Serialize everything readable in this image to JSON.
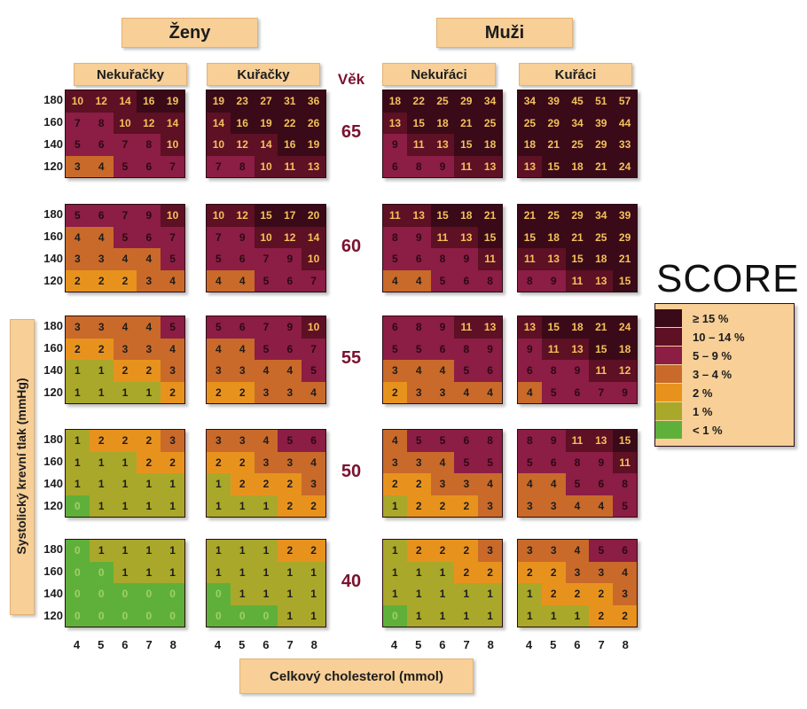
{
  "header": {
    "women": "Ženy",
    "men": "Muži"
  },
  "subheaders": [
    "Nekuřačky",
    "Kuřačky",
    "Nekuřáci",
    "Kuřáci"
  ],
  "age_header": "Věk",
  "ages": [
    "65",
    "60",
    "55",
    "50",
    "40"
  ],
  "y_ticks": [
    "180",
    "160",
    "140",
    "120"
  ],
  "x_ticks": [
    "4",
    "5",
    "6",
    "7",
    "8"
  ],
  "y_axis_label": "Systolický krevní tlak (mmHg)",
  "x_axis_label": "Celkový cholesterol (mmol)",
  "score": {
    "title": "SCORE",
    "legend": [
      {
        "label": "≥ 15 %",
        "color": "#3a0a18"
      },
      {
        "label": "10 – 14 %",
        "color": "#5e1024"
      },
      {
        "label": "5 – 9 %",
        "color": "#8c1d45"
      },
      {
        "label": "3 – 4 %",
        "color": "#c96a2a"
      },
      {
        "label": "2 %",
        "color": "#e8921e"
      },
      {
        "label": "1 %",
        "color": "#a9a82a"
      },
      {
        "label": "< 1 %",
        "color": "#5fb03a"
      }
    ]
  },
  "chart_data": {
    "type": "heatmap",
    "title": "SCORE",
    "xlabel": "Celkový cholesterol (mmol)",
    "ylabel": "Systolický krevní tlak (mmHg)",
    "x": [
      4,
      5,
      6,
      7,
      8
    ],
    "y": [
      180,
      160,
      140,
      120
    ],
    "groups": [
      "Ženy / Nekuřačky",
      "Ženy / Kuřačky",
      "Muži / Nekuřáci",
      "Muži / Kuřáci"
    ],
    "ages": [
      65,
      60,
      55,
      50,
      40
    ],
    "panels": [
      [
        [
          [
            10,
            12,
            14,
            16,
            19
          ],
          [
            7,
            8,
            10,
            12,
            14
          ],
          [
            5,
            6,
            7,
            8,
            10
          ],
          [
            3,
            4,
            5,
            6,
            7
          ]
        ],
        [
          [
            19,
            23,
            27,
            31,
            36
          ],
          [
            14,
            16,
            19,
            22,
            26
          ],
          [
            10,
            12,
            14,
            16,
            19
          ],
          [
            7,
            8,
            10,
            11,
            13
          ]
        ],
        [
          [
            18,
            22,
            25,
            29,
            34
          ],
          [
            13,
            15,
            18,
            21,
            25
          ],
          [
            9,
            11,
            13,
            15,
            18
          ],
          [
            6,
            8,
            9,
            11,
            13
          ]
        ],
        [
          [
            34,
            39,
            45,
            51,
            57
          ],
          [
            25,
            29,
            34,
            39,
            44
          ],
          [
            18,
            21,
            25,
            29,
            33
          ],
          [
            13,
            15,
            18,
            21,
            24
          ]
        ]
      ],
      [
        [
          [
            5,
            6,
            7,
            9,
            10
          ],
          [
            4,
            4,
            5,
            6,
            7
          ],
          [
            3,
            3,
            4,
            4,
            5
          ],
          [
            2,
            2,
            2,
            3,
            4
          ]
        ],
        [
          [
            10,
            12,
            15,
            17,
            20
          ],
          [
            7,
            9,
            10,
            12,
            14
          ],
          [
            5,
            6,
            7,
            9,
            10
          ],
          [
            4,
            4,
            5,
            6,
            7
          ]
        ],
        [
          [
            11,
            13,
            15,
            18,
            21
          ],
          [
            8,
            9,
            11,
            13,
            15
          ],
          [
            5,
            6,
            8,
            9,
            11
          ],
          [
            4,
            4,
            5,
            6,
            8
          ]
        ],
        [
          [
            21,
            25,
            29,
            34,
            39
          ],
          [
            15,
            18,
            21,
            25,
            29
          ],
          [
            11,
            13,
            15,
            18,
            21
          ],
          [
            8,
            9,
            11,
            13,
            15
          ]
        ]
      ],
      [
        [
          [
            3,
            3,
            4,
            4,
            5
          ],
          [
            2,
            2,
            3,
            3,
            4
          ],
          [
            1,
            1,
            2,
            2,
            3
          ],
          [
            1,
            1,
            1,
            1,
            2
          ]
        ],
        [
          [
            5,
            6,
            7,
            9,
            10
          ],
          [
            4,
            4,
            5,
            6,
            7
          ],
          [
            3,
            3,
            4,
            4,
            5
          ],
          [
            2,
            2,
            3,
            3,
            4
          ]
        ],
        [
          [
            6,
            8,
            9,
            11,
            13
          ],
          [
            5,
            5,
            6,
            8,
            9
          ],
          [
            3,
            4,
            4,
            5,
            6
          ],
          [
            2,
            3,
            3,
            4,
            4
          ]
        ],
        [
          [
            13,
            15,
            18,
            21,
            24
          ],
          [
            9,
            11,
            13,
            15,
            18
          ],
          [
            6,
            8,
            9,
            11,
            12
          ],
          [
            4,
            5,
            6,
            7,
            9
          ]
        ]
      ],
      [
        [
          [
            1,
            2,
            2,
            2,
            3
          ],
          [
            1,
            1,
            1,
            2,
            2
          ],
          [
            1,
            1,
            1,
            1,
            1
          ],
          [
            0,
            1,
            1,
            1,
            1
          ]
        ],
        [
          [
            3,
            3,
            4,
            5,
            6
          ],
          [
            2,
            2,
            3,
            3,
            4
          ],
          [
            1,
            2,
            2,
            2,
            3
          ],
          [
            1,
            1,
            1,
            2,
            2
          ]
        ],
        [
          [
            4,
            5,
            5,
            6,
            8
          ],
          [
            3,
            3,
            4,
            5,
            5
          ],
          [
            2,
            2,
            3,
            3,
            4
          ],
          [
            1,
            2,
            2,
            2,
            3
          ]
        ],
        [
          [
            8,
            9,
            11,
            13,
            15
          ],
          [
            5,
            6,
            8,
            9,
            11
          ],
          [
            4,
            4,
            5,
            6,
            8
          ],
          [
            3,
            3,
            4,
            4,
            5
          ]
        ]
      ],
      [
        [
          [
            0,
            1,
            1,
            1,
            1
          ],
          [
            0,
            0,
            1,
            1,
            1
          ],
          [
            0,
            0,
            0,
            0,
            0
          ],
          [
            0,
            0,
            0,
            0,
            0
          ]
        ],
        [
          [
            1,
            1,
            1,
            2,
            2
          ],
          [
            1,
            1,
            1,
            1,
            1
          ],
          [
            0,
            1,
            1,
            1,
            1
          ],
          [
            0,
            0,
            0,
            1,
            1
          ]
        ],
        [
          [
            1,
            2,
            2,
            2,
            3
          ],
          [
            1,
            1,
            1,
            2,
            2
          ],
          [
            1,
            1,
            1,
            1,
            1
          ],
          [
            0,
            1,
            1,
            1,
            1
          ]
        ],
        [
          [
            3,
            3,
            4,
            5,
            6
          ],
          [
            2,
            2,
            3,
            3,
            4
          ],
          [
            1,
            2,
            2,
            2,
            3
          ],
          [
            1,
            1,
            1,
            2,
            2
          ]
        ]
      ]
    ]
  }
}
